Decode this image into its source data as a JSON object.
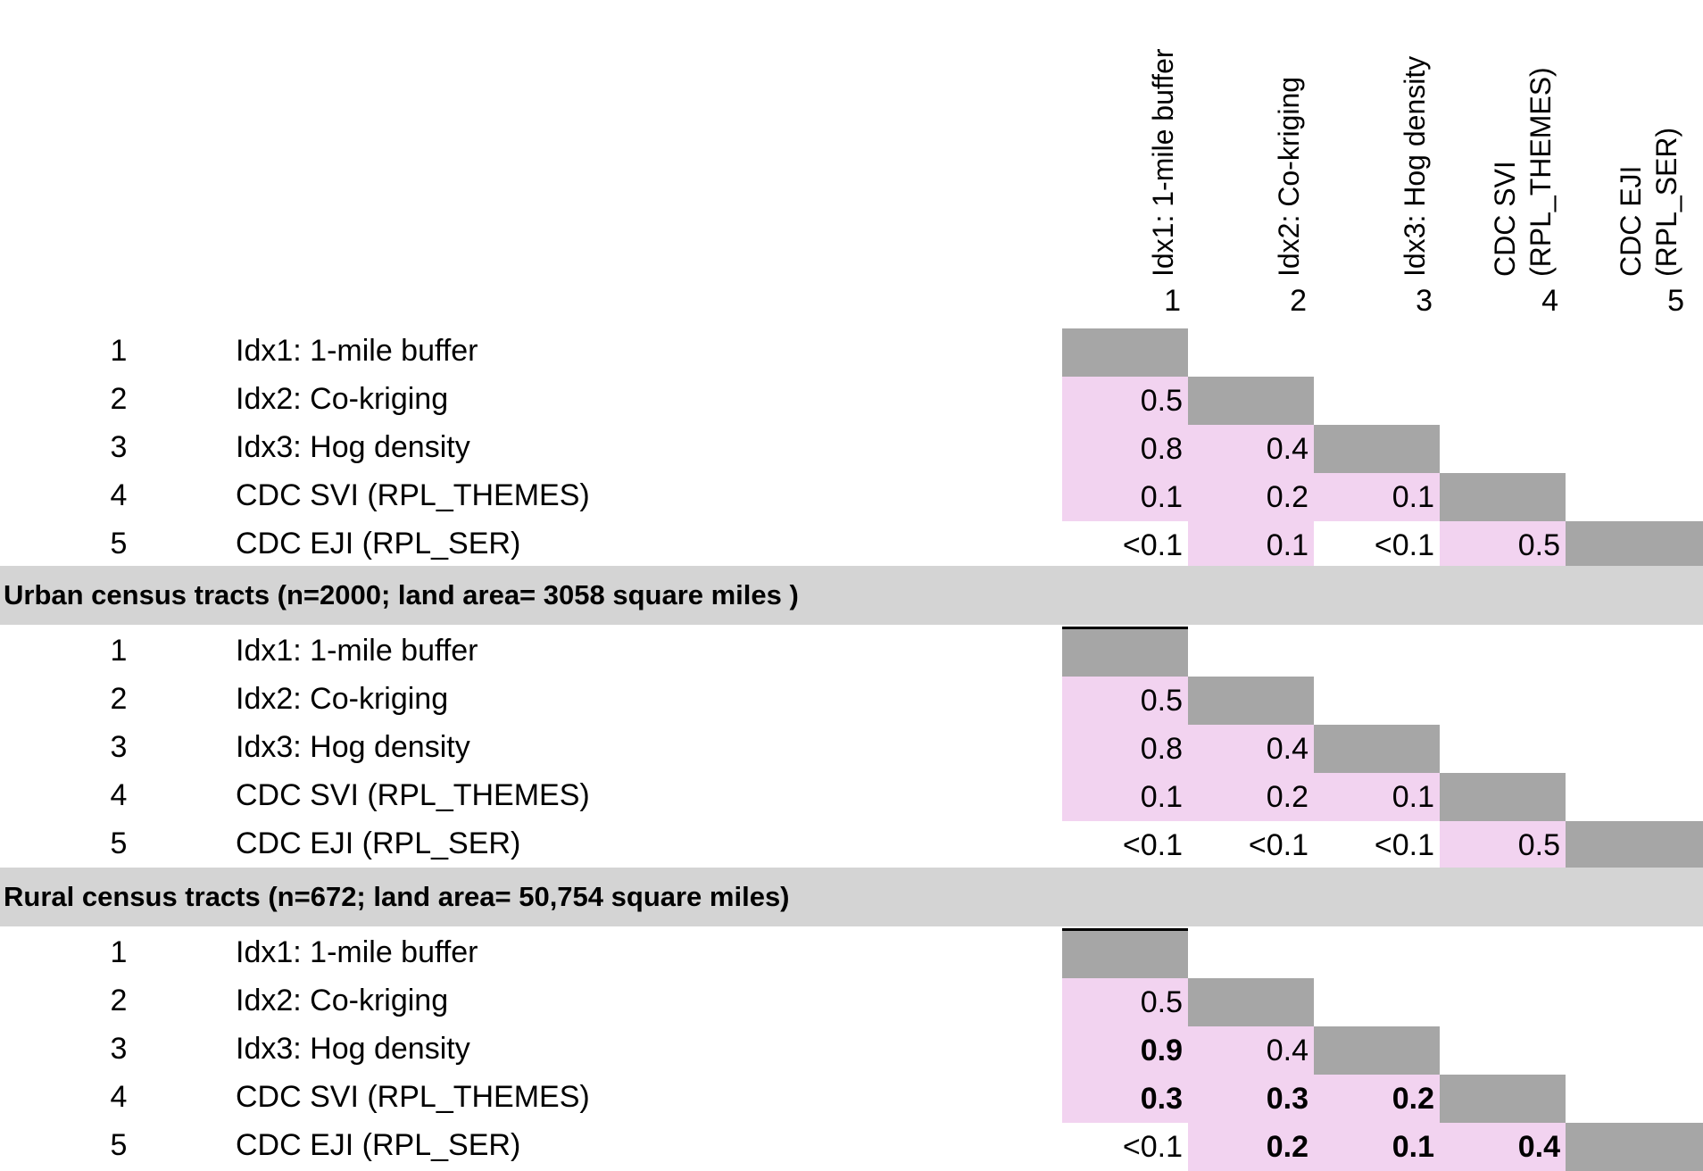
{
  "columns": [
    {
      "num": "1",
      "name": "Idx1: 1-mile buffer"
    },
    {
      "num": "2",
      "name": "Idx2: Co-kriging"
    },
    {
      "num": "3",
      "name": "Idx3: Hog density"
    },
    {
      "num": "4",
      "name": "CDC SVI\n(RPL_THEMES)"
    },
    {
      "num": "5",
      "name": "CDC EJI\n(RPL_SER)"
    }
  ],
  "row_labels": [
    {
      "num": "1",
      "label": "Idx1: 1-mile buffer"
    },
    {
      "num": "2",
      "label": "Idx2: Co-kriging"
    },
    {
      "num": "3",
      "label": "Idx3: Hog density"
    },
    {
      "num": "4",
      "label": "CDC SVI (RPL_THEMES)"
    },
    {
      "num": "5",
      "label": "CDC EJI (RPL_SER)"
    }
  ],
  "blocks": [
    {
      "title": "",
      "values": [
        [],
        [
          {
            "v": "0.5",
            "sig": true,
            "bold": false
          }
        ],
        [
          {
            "v": "0.8",
            "sig": true,
            "bold": false
          },
          {
            "v": "0.4",
            "sig": true,
            "bold": false
          }
        ],
        [
          {
            "v": "0.1",
            "sig": true,
            "bold": false
          },
          {
            "v": "0.2",
            "sig": true,
            "bold": false
          },
          {
            "v": "0.1",
            "sig": true,
            "bold": false
          }
        ],
        [
          {
            "v": "<0.1",
            "sig": false,
            "bold": false
          },
          {
            "v": "0.1",
            "sig": true,
            "bold": false
          },
          {
            "v": "<0.1",
            "sig": false,
            "bold": false
          },
          {
            "v": "0.5",
            "sig": true,
            "bold": false
          }
        ]
      ]
    },
    {
      "title": "Urban census tracts (n=2000; land area= 3058 square miles )",
      "values": [
        [],
        [
          {
            "v": "0.5",
            "sig": true,
            "bold": false
          }
        ],
        [
          {
            "v": "0.8",
            "sig": true,
            "bold": false
          },
          {
            "v": "0.4",
            "sig": true,
            "bold": false
          }
        ],
        [
          {
            "v": "0.1",
            "sig": true,
            "bold": false
          },
          {
            "v": "0.2",
            "sig": true,
            "bold": false
          },
          {
            "v": "0.1",
            "sig": true,
            "bold": false
          }
        ],
        [
          {
            "v": "<0.1",
            "sig": false,
            "bold": false
          },
          {
            "v": "<0.1",
            "sig": false,
            "bold": false
          },
          {
            "v": "<0.1",
            "sig": false,
            "bold": false
          },
          {
            "v": "0.5",
            "sig": true,
            "bold": false
          }
        ]
      ]
    },
    {
      "title": "Rural census tracts (n=672; land area= 50,754 square miles)",
      "values": [
        [],
        [
          {
            "v": "0.5",
            "sig": true,
            "bold": false
          }
        ],
        [
          {
            "v": "0.9",
            "sig": true,
            "bold": true
          },
          {
            "v": "0.4",
            "sig": true,
            "bold": false
          }
        ],
        [
          {
            "v": "0.3",
            "sig": true,
            "bold": true
          },
          {
            "v": "0.3",
            "sig": true,
            "bold": true
          },
          {
            "v": "0.2",
            "sig": true,
            "bold": true
          }
        ],
        [
          {
            "v": "<0.1",
            "sig": false,
            "bold": false
          },
          {
            "v": "0.2",
            "sig": true,
            "bold": true
          },
          {
            "v": "0.1",
            "sig": true,
            "bold": true
          },
          {
            "v": "0.4",
            "sig": true,
            "bold": true
          }
        ]
      ]
    }
  ],
  "colors": {
    "significant": "#f2d3f0",
    "diagonal": "#a6a6a6",
    "section_band": "#d4d4d4"
  }
}
